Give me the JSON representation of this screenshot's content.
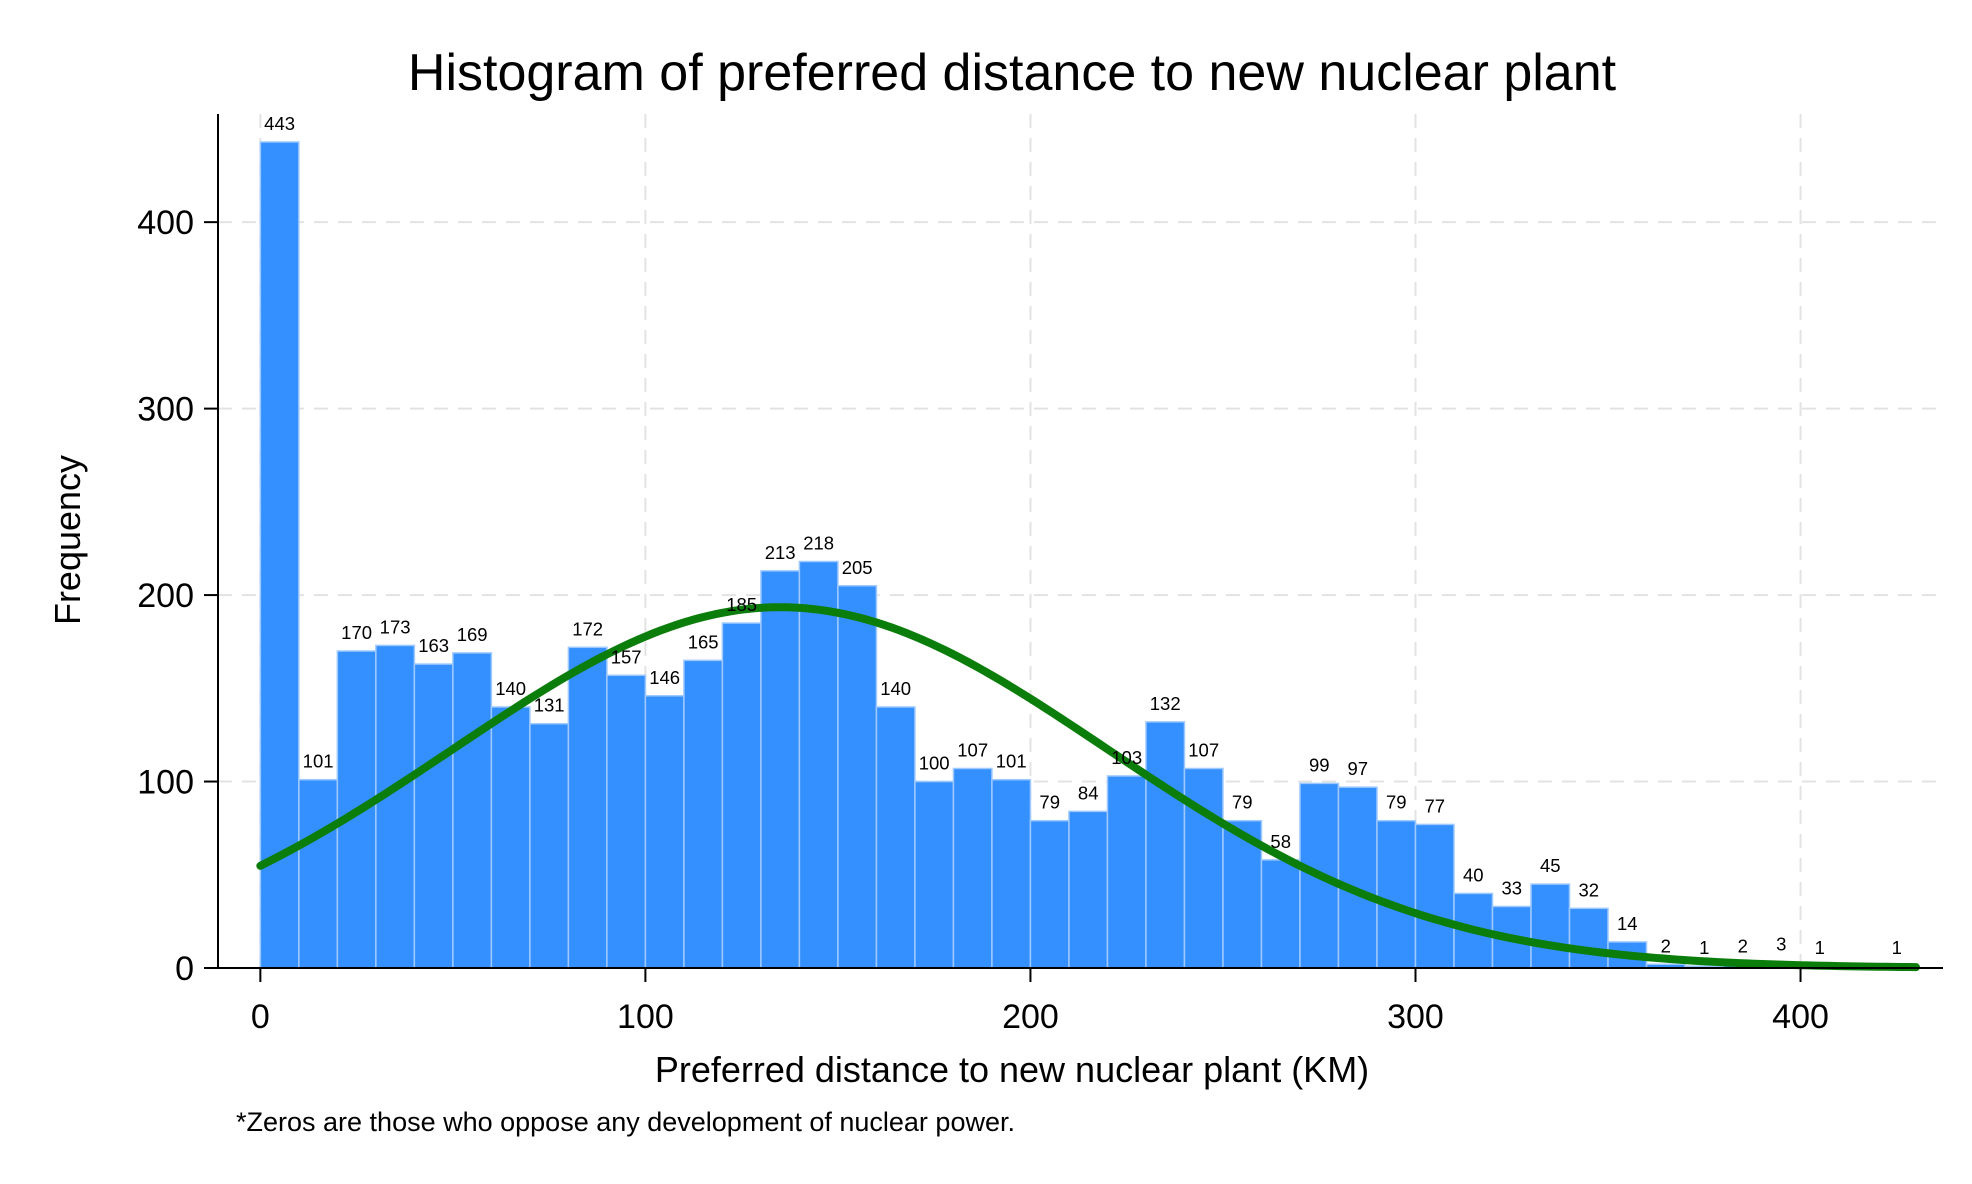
{
  "chart_data": {
    "type": "bar",
    "title": "Histogram of preferred distance to new nuclear plant",
    "xlabel": "Preferred distance to new nuclear plant (KM)",
    "ylabel": "Frequency",
    "note": "*Zeros are those who oppose any development of nuclear power.",
    "bin_width": 10,
    "bin_starts": [
      0,
      10,
      20,
      30,
      40,
      50,
      60,
      70,
      80,
      90,
      100,
      110,
      120,
      130,
      140,
      150,
      160,
      170,
      180,
      190,
      200,
      210,
      220,
      230,
      240,
      250,
      260,
      270,
      280,
      290,
      300,
      310,
      320,
      330,
      340,
      350,
      360,
      370,
      380,
      390,
      400,
      410,
      420
    ],
    "values": [
      443,
      101,
      170,
      173,
      163,
      169,
      140,
      131,
      172,
      157,
      146,
      165,
      185,
      213,
      218,
      205,
      140,
      100,
      107,
      101,
      79,
      84,
      103,
      132,
      107,
      79,
      58,
      99,
      97,
      79,
      77,
      40,
      33,
      45,
      32,
      14,
      2,
      1,
      2,
      3,
      1,
      0,
      1
    ],
    "value_labels": [
      "443",
      "101",
      "170",
      "173",
      "163",
      "169",
      "140",
      "131",
      "172",
      "157",
      "146",
      "165",
      "185",
      "213",
      "218",
      "205",
      "140",
      "100",
      "107",
      "101",
      "79",
      "84",
      "103",
      "132",
      "107",
      "79",
      "58",
      "99",
      "97",
      "79",
      "77",
      "40",
      "33",
      "45",
      "32",
      "14",
      "2",
      "1",
      "2",
      "3",
      "1",
      "",
      "1"
    ],
    "normal_curve": {
      "mean": 135,
      "sd": 85,
      "peak": 193.5,
      "x_range": [
        0,
        430
      ]
    },
    "xlim": [
      -11,
      437
    ],
    "ylim": [
      0,
      458
    ],
    "xticks": [
      0,
      100,
      200,
      300,
      400
    ],
    "yticks": [
      0,
      100,
      200,
      300,
      400
    ],
    "xtick_labels": [
      "0",
      "100",
      "200",
      "300",
      "400"
    ],
    "ytick_labels": [
      "0",
      "100",
      "200",
      "300",
      "400"
    ],
    "grid": true,
    "colors": {
      "bar": "#3590ff",
      "bar_edge": "#9ec9ff",
      "curve": "#0b7d0b",
      "grid": "#e3e3e3"
    }
  }
}
